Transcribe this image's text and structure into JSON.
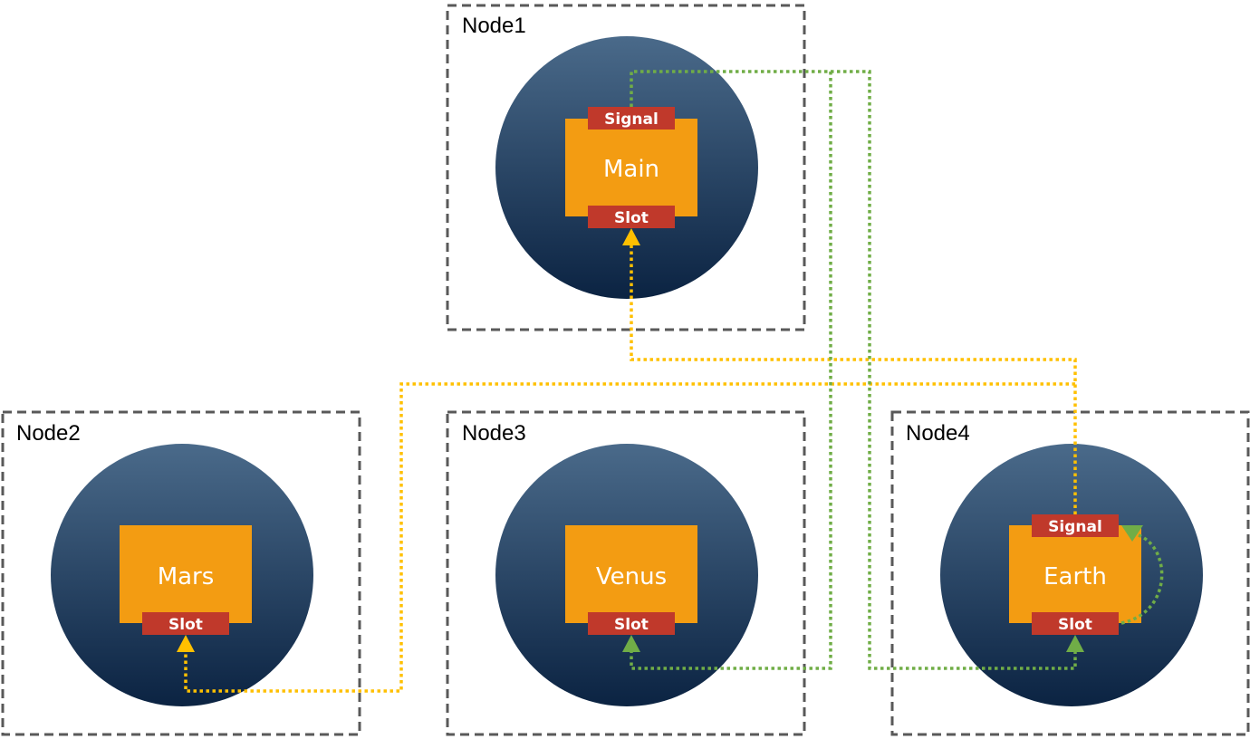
{
  "colors": {
    "frame": "#595959",
    "planet_top": "#4a6a8a",
    "planet_bottom": "#0b2342",
    "component": "#f39c12",
    "port": "#c0392b",
    "yellow_link": "#ffc000",
    "green_link": "#70ad47"
  },
  "nodes": [
    {
      "label": "Node1",
      "component": "Main",
      "signal": "Signal",
      "slot": "Slot"
    },
    {
      "label": "Node2",
      "component": "Mars",
      "slot": "Slot"
    },
    {
      "label": "Node3",
      "component": "Venus",
      "slot": "Slot"
    },
    {
      "label": "Node4",
      "component": "Earth",
      "signal": "Signal",
      "slot": "Slot"
    }
  ],
  "connections": [
    {
      "from": "Earth.Signal",
      "to": "Main.Slot",
      "color": "yellow"
    },
    {
      "from": "Earth.Signal",
      "to": "Mars.Slot",
      "color": "yellow"
    },
    {
      "from": "Main.Signal",
      "to": "Venus.Slot",
      "color": "green"
    },
    {
      "from": "Main.Signal",
      "to": "Earth.Slot",
      "color": "green"
    },
    {
      "from": "Earth.Signal",
      "to": "Earth.Slot",
      "color": "green"
    }
  ]
}
